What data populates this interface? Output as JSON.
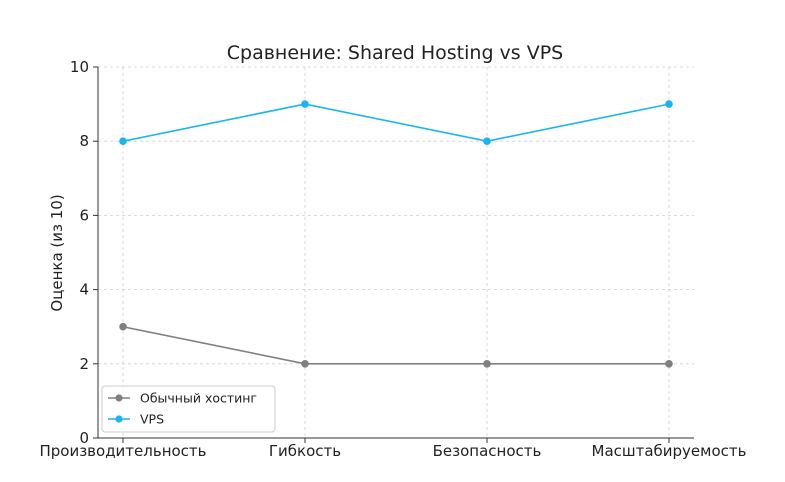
{
  "chart_data": {
    "type": "line",
    "title": "Сравнение: Shared Hosting vs VPS",
    "xlabel": "",
    "ylabel": "Оценка (из 10)",
    "categories": [
      "Производительность",
      "Гибкость",
      "Безопасность",
      "Масштабируемость"
    ],
    "ylim": [
      0,
      10
    ],
    "yticks": [
      0,
      2,
      4,
      6,
      8,
      10
    ],
    "grid": true,
    "legend_position": "lower-left",
    "series": [
      {
        "name": "Обычный хостинг",
        "values": [
          3,
          2,
          2,
          2
        ],
        "color": "#808080",
        "marker": "circle"
      },
      {
        "name": "VPS",
        "values": [
          8,
          9,
          8,
          9
        ],
        "color": "#1ab4f0",
        "marker": "circle"
      }
    ]
  }
}
